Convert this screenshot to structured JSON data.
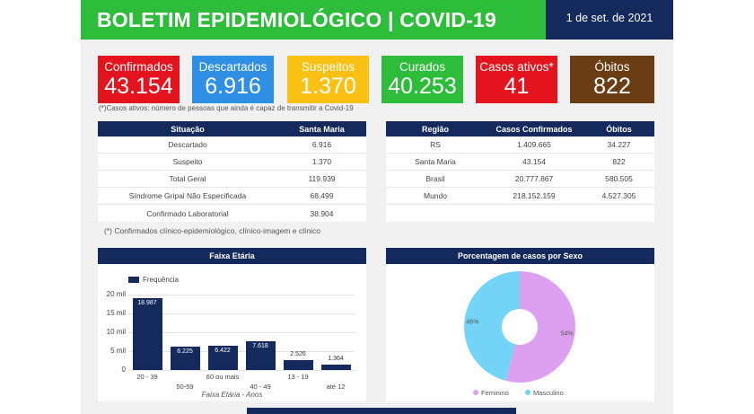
{
  "header": {
    "title": "BOLETIM EPIDEMIOLÓGICO | COVID-19",
    "date": "1 de set. de 2021"
  },
  "cards": [
    {
      "label": "Confirmados",
      "value": "43.154",
      "color": "#e3141d"
    },
    {
      "label": "Descartados",
      "value": "6.916",
      "color": "#2f8fe4"
    },
    {
      "label": "Suspeitos",
      "value": "1.370",
      "color": "#fac114"
    },
    {
      "label": "Curados",
      "value": "40.253",
      "color": "#2ebd3b"
    },
    {
      "label": "Casos ativos*",
      "value": "41",
      "color": "#e3141d"
    },
    {
      "label": "Óbitos",
      "value": "822",
      "color": "#6b3d14"
    }
  ],
  "active_note": "(*)Casos ativos: número de pessoas que ainda é capaz de transmitir a Covid-19",
  "situacao_table": {
    "headers": [
      "Situação",
      "Santa Maria"
    ],
    "rows": [
      [
        "Descartado",
        "6.916"
      ],
      [
        "Suspeito",
        "1.370"
      ],
      [
        "Total Geral",
        "119.939"
      ],
      [
        "Síndrome Gripal Não Especificada",
        "68.499"
      ],
      [
        "Confirmado Laboratorial",
        "38.904"
      ]
    ]
  },
  "confirm_note": "(*) Confirmados clínico-epidemiológico, clínico-imagem e clínico",
  "regiao_table": {
    "headers": [
      "Região",
      "Casos Confirmados",
      "Óbitos"
    ],
    "rows": [
      [
        "RS",
        "1.409.665",
        "34.227"
      ],
      [
        "Santa Maria",
        "43.154",
        "822"
      ],
      [
        "Brasil",
        "20.777.867",
        "580.505"
      ],
      [
        "Mundo",
        "218.152.159",
        "4.527.305"
      ]
    ]
  },
  "age_panel": {
    "title": "Faixa Etária",
    "legend": "Frequência",
    "xlabel": "Faixa Etária - Anos"
  },
  "sex_panel": {
    "title": "Porcentagem de casos por Sexo"
  },
  "chart_data": [
    {
      "type": "bar",
      "title": "Faixa Etária",
      "categories": [
        "20 - 39",
        "50-59",
        "60 ou mais",
        "40 - 49",
        "13 - 19",
        "até 12"
      ],
      "series": [
        {
          "name": "Frequência",
          "values": [
            18987,
            6225,
            6422,
            7618,
            2526,
            1364
          ]
        }
      ],
      "value_labels": [
        "18.987",
        "6.225",
        "6.422",
        "7.618",
        "2.526",
        "1.364"
      ],
      "xlabel": "Faixa Etária - Anos",
      "ylabel": "",
      "yticks": [
        "20 mil",
        "15 mil",
        "10 mil",
        "5 mil",
        "0"
      ],
      "ylim": [
        0,
        20000
      ],
      "color": "#14295c"
    },
    {
      "type": "pie",
      "title": "Porcentagem de casos por Sexo",
      "categories": [
        "Feminino",
        "Masculino"
      ],
      "values": [
        54,
        46
      ],
      "value_labels": [
        "54%",
        "46%"
      ],
      "colors": [
        "#dd9ff0",
        "#74d4f7"
      ],
      "legend": "bottom"
    }
  ]
}
